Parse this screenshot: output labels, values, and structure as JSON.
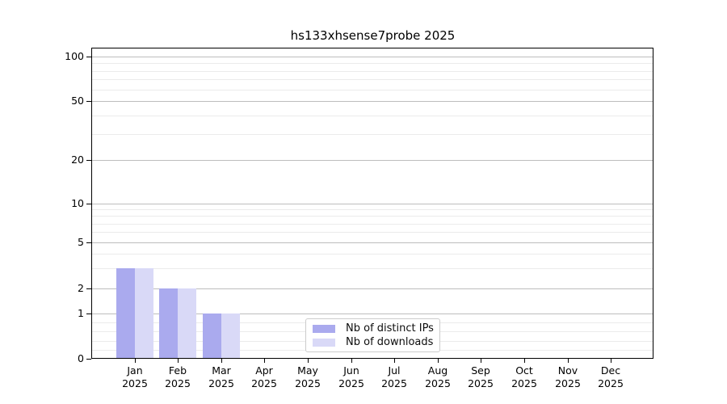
{
  "chart_data": {
    "type": "bar",
    "title": "hs133xhsense7probe 2025",
    "categories": [
      "Jan 2025",
      "Feb 2025",
      "Mar 2025",
      "Apr 2025",
      "May 2025",
      "Jun 2025",
      "Jul 2025",
      "Aug 2025",
      "Sep 2025",
      "Oct 2025",
      "Nov 2025",
      "Dec 2025"
    ],
    "series": [
      {
        "name": "Nb of distinct IPs",
        "color": "#aaaaee",
        "values": [
          3,
          2,
          1,
          0,
          0,
          0,
          0,
          0,
          0,
          0,
          0,
          0
        ]
      },
      {
        "name": "Nb of downloads",
        "color": "#d9d9f7",
        "values": [
          3,
          2,
          1,
          0,
          0,
          0,
          0,
          0,
          0,
          0,
          0,
          0
        ]
      }
    ],
    "xlabel": "",
    "ylabel": "",
    "yscale": "symlog",
    "yticks": [
      0,
      1,
      2,
      5,
      10,
      20,
      50,
      100
    ],
    "ylim": [
      0,
      100
    ],
    "grid": "both",
    "legend_position": "lower center"
  },
  "colors": {
    "background": "#ffffff",
    "spine": "#000000",
    "major_grid": "#bdbdbd",
    "minor_grid": "#ebebeb",
    "text": "#000000"
  }
}
